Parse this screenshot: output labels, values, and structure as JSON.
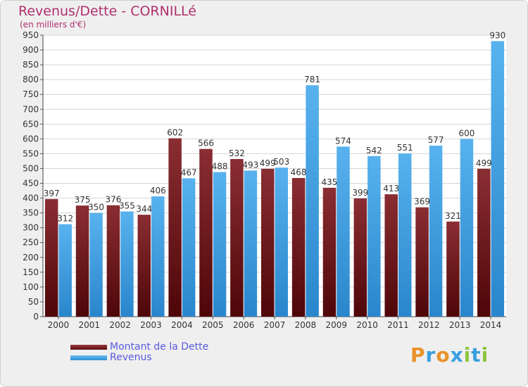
{
  "title": "Revenus/Dette - CORNILLé",
  "subtitle": "(en milliers d'€)",
  "legend": {
    "debt_label": "Montant de la Dette",
    "revenue_label": "Revenus"
  },
  "logo": {
    "text": "Proxiti",
    "letter_colors": [
      "#e8922a",
      "#3aa0e0",
      "#e8922a",
      "#3aa0e0",
      "#8ec63f",
      "#3aa0e0",
      "#8ec63f"
    ]
  },
  "colors": {
    "debt": "#7a1e24",
    "revenue": "#3d9be0",
    "title": "#b0306e"
  },
  "chart_data": {
    "type": "bar",
    "title": "Revenus/Dette - CORNILLé",
    "ylabel": "(en milliers d'€)",
    "xlabel": "",
    "ylim": [
      0,
      950
    ],
    "ytick_step": 50,
    "grid": true,
    "categories": [
      "2000",
      "2001",
      "2002",
      "2003",
      "2004",
      "2005",
      "2006",
      "2007",
      "2008",
      "2009",
      "2010",
      "2011",
      "2012",
      "2013",
      "2014"
    ],
    "series": [
      {
        "name": "Montant de la Dette",
        "values": [
          397,
          375,
          376,
          344,
          602,
          566,
          532,
          499,
          468,
          435,
          399,
          413,
          369,
          321,
          499
        ]
      },
      {
        "name": "Revenus",
        "values": [
          312,
          350,
          355,
          406,
          467,
          488,
          493,
          503,
          781,
          574,
          542,
          551,
          577,
          600,
          930
        ]
      }
    ]
  }
}
